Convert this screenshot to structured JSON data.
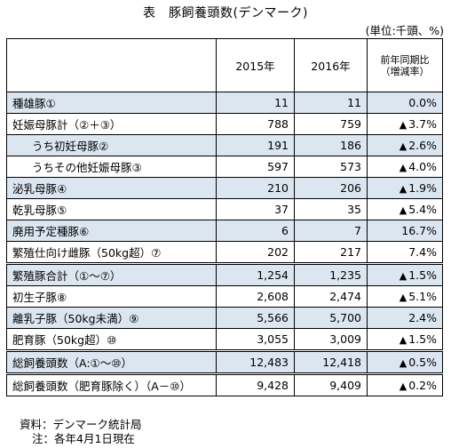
{
  "title": "表　豚飼養頭数(デンマーク)",
  "unit": "(単位:千頭、%)",
  "headers": {
    "y2015": "2015年",
    "y2016": "2016年",
    "change_line1": "前年同期比",
    "change_line2": "（増減率）"
  },
  "rows": [
    {
      "label": "種雄豚①",
      "v2015": "11",
      "v2016": "11",
      "change": "0.0%",
      "neg": false
    },
    {
      "label": "妊娠母豚計（②＋③）",
      "v2015": "788",
      "v2016": "759",
      "change": "3.7%",
      "neg": true
    },
    {
      "label": "うち初妊母豚②",
      "v2015": "191",
      "v2016": "186",
      "change": "2.6%",
      "neg": true
    },
    {
      "label": "うちその他妊娠母豚③",
      "v2015": "597",
      "v2016": "573",
      "change": "4.0%",
      "neg": true
    },
    {
      "label": "泌乳母豚④",
      "v2015": "210",
      "v2016": "206",
      "change": "1.9%",
      "neg": true
    },
    {
      "label": "乾乳母豚⑤",
      "v2015": "37",
      "v2016": "35",
      "change": "5.4%",
      "neg": true
    },
    {
      "label": "廃用予定種豚⑥",
      "v2015": "6",
      "v2016": "7",
      "change": "16.7%",
      "neg": false
    },
    {
      "label": "繁殖仕向け雌豚（50kg超）⑦",
      "v2015": "202",
      "v2016": "217",
      "change": "7.4%",
      "neg": false
    },
    {
      "label": "繁殖豚合計（①～⑦）",
      "v2015": "1,254",
      "v2016": "1,235",
      "change": "1.5%",
      "neg": true
    },
    {
      "label": "初生子豚⑧",
      "v2015": "2,608",
      "v2016": "2,474",
      "change": "5.1%",
      "neg": true
    },
    {
      "label": "離乳子豚（50kg未満）⑨",
      "v2015": "5,566",
      "v2016": "5,700",
      "change": "2.4%",
      "neg": false
    },
    {
      "label": "肥育豚（50kg超）⑩",
      "v2015": "3,055",
      "v2016": "3,009",
      "change": "1.5%",
      "neg": true
    },
    {
      "label": "総飼養頭数（A:①～⑩）",
      "v2015": "12,483",
      "v2016": "12,418",
      "change": "0.5%",
      "neg": true
    },
    {
      "label": "総飼養頭数（肥育豚除く）（A－⑩）",
      "v2015": "9,428",
      "v2016": "9,409",
      "change": "0.2%",
      "neg": true
    }
  ],
  "neg_marker": "▲",
  "notes": {
    "source": "資料：デンマーク統計局",
    "note": "注：各年4月1日現在"
  }
}
